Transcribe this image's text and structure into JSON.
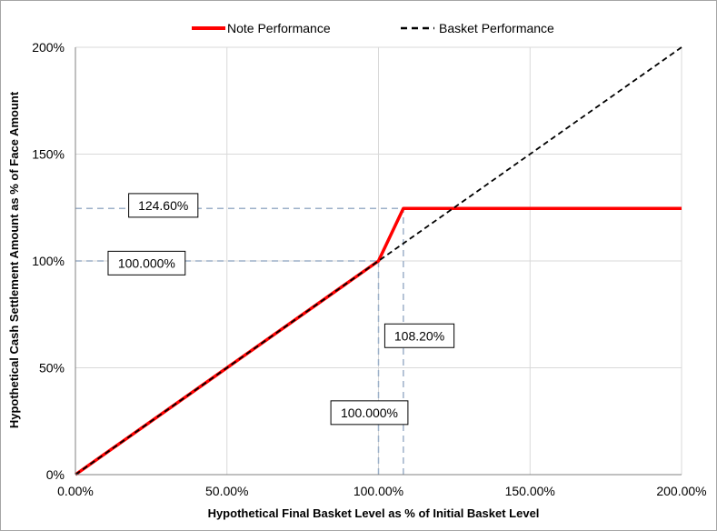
{
  "chart_data": {
    "type": "line",
    "title": "",
    "xlabel": "Hypothetical Final Basket Level as % of Initial Basket Level",
    "ylabel": "Hypothetical Cash Settlement Amount as % of Face Amount",
    "xlim": [
      0,
      200
    ],
    "ylim": [
      0,
      200
    ],
    "x_ticks": [
      0,
      50,
      100,
      150,
      200
    ],
    "x_tick_labels": [
      "0.00%",
      "50.00%",
      "100.00%",
      "150.00%",
      "200.00%"
    ],
    "y_ticks": [
      0,
      50,
      100,
      150,
      200
    ],
    "y_tick_labels": [
      "0%",
      "50%",
      "100%",
      "150%",
      "200%"
    ],
    "grid": true,
    "legend_position": "top",
    "series": [
      {
        "name": "Note Performance",
        "style": "solid",
        "color": "#ff0000",
        "x": [
          0,
          100,
          108.2,
          200
        ],
        "y": [
          0,
          100,
          124.6,
          124.6
        ]
      },
      {
        "name": "Basket Performance",
        "style": "dashed",
        "color": "#000000",
        "x": [
          0,
          200
        ],
        "y": [
          0,
          200
        ]
      }
    ],
    "reference_lines": [
      {
        "axis": "y",
        "value": 124.6,
        "x_from": 0,
        "x_to": 108.2
      },
      {
        "axis": "y",
        "value": 100,
        "x_from": 0,
        "x_to": 100
      },
      {
        "axis": "x",
        "value": 108.2,
        "y_from": 0,
        "y_to": 124.6
      },
      {
        "axis": "x",
        "value": 100,
        "y_from": 0,
        "y_to": 100
      }
    ],
    "annotations": [
      {
        "text": "124.60%",
        "x": 29,
        "y": 126
      },
      {
        "text": "100.000%",
        "x": 23.5,
        "y": 99
      },
      {
        "text": "108.20%",
        "x": 113.5,
        "y": 65
      },
      {
        "text": "100.000%",
        "x": 97,
        "y": 29
      }
    ]
  }
}
